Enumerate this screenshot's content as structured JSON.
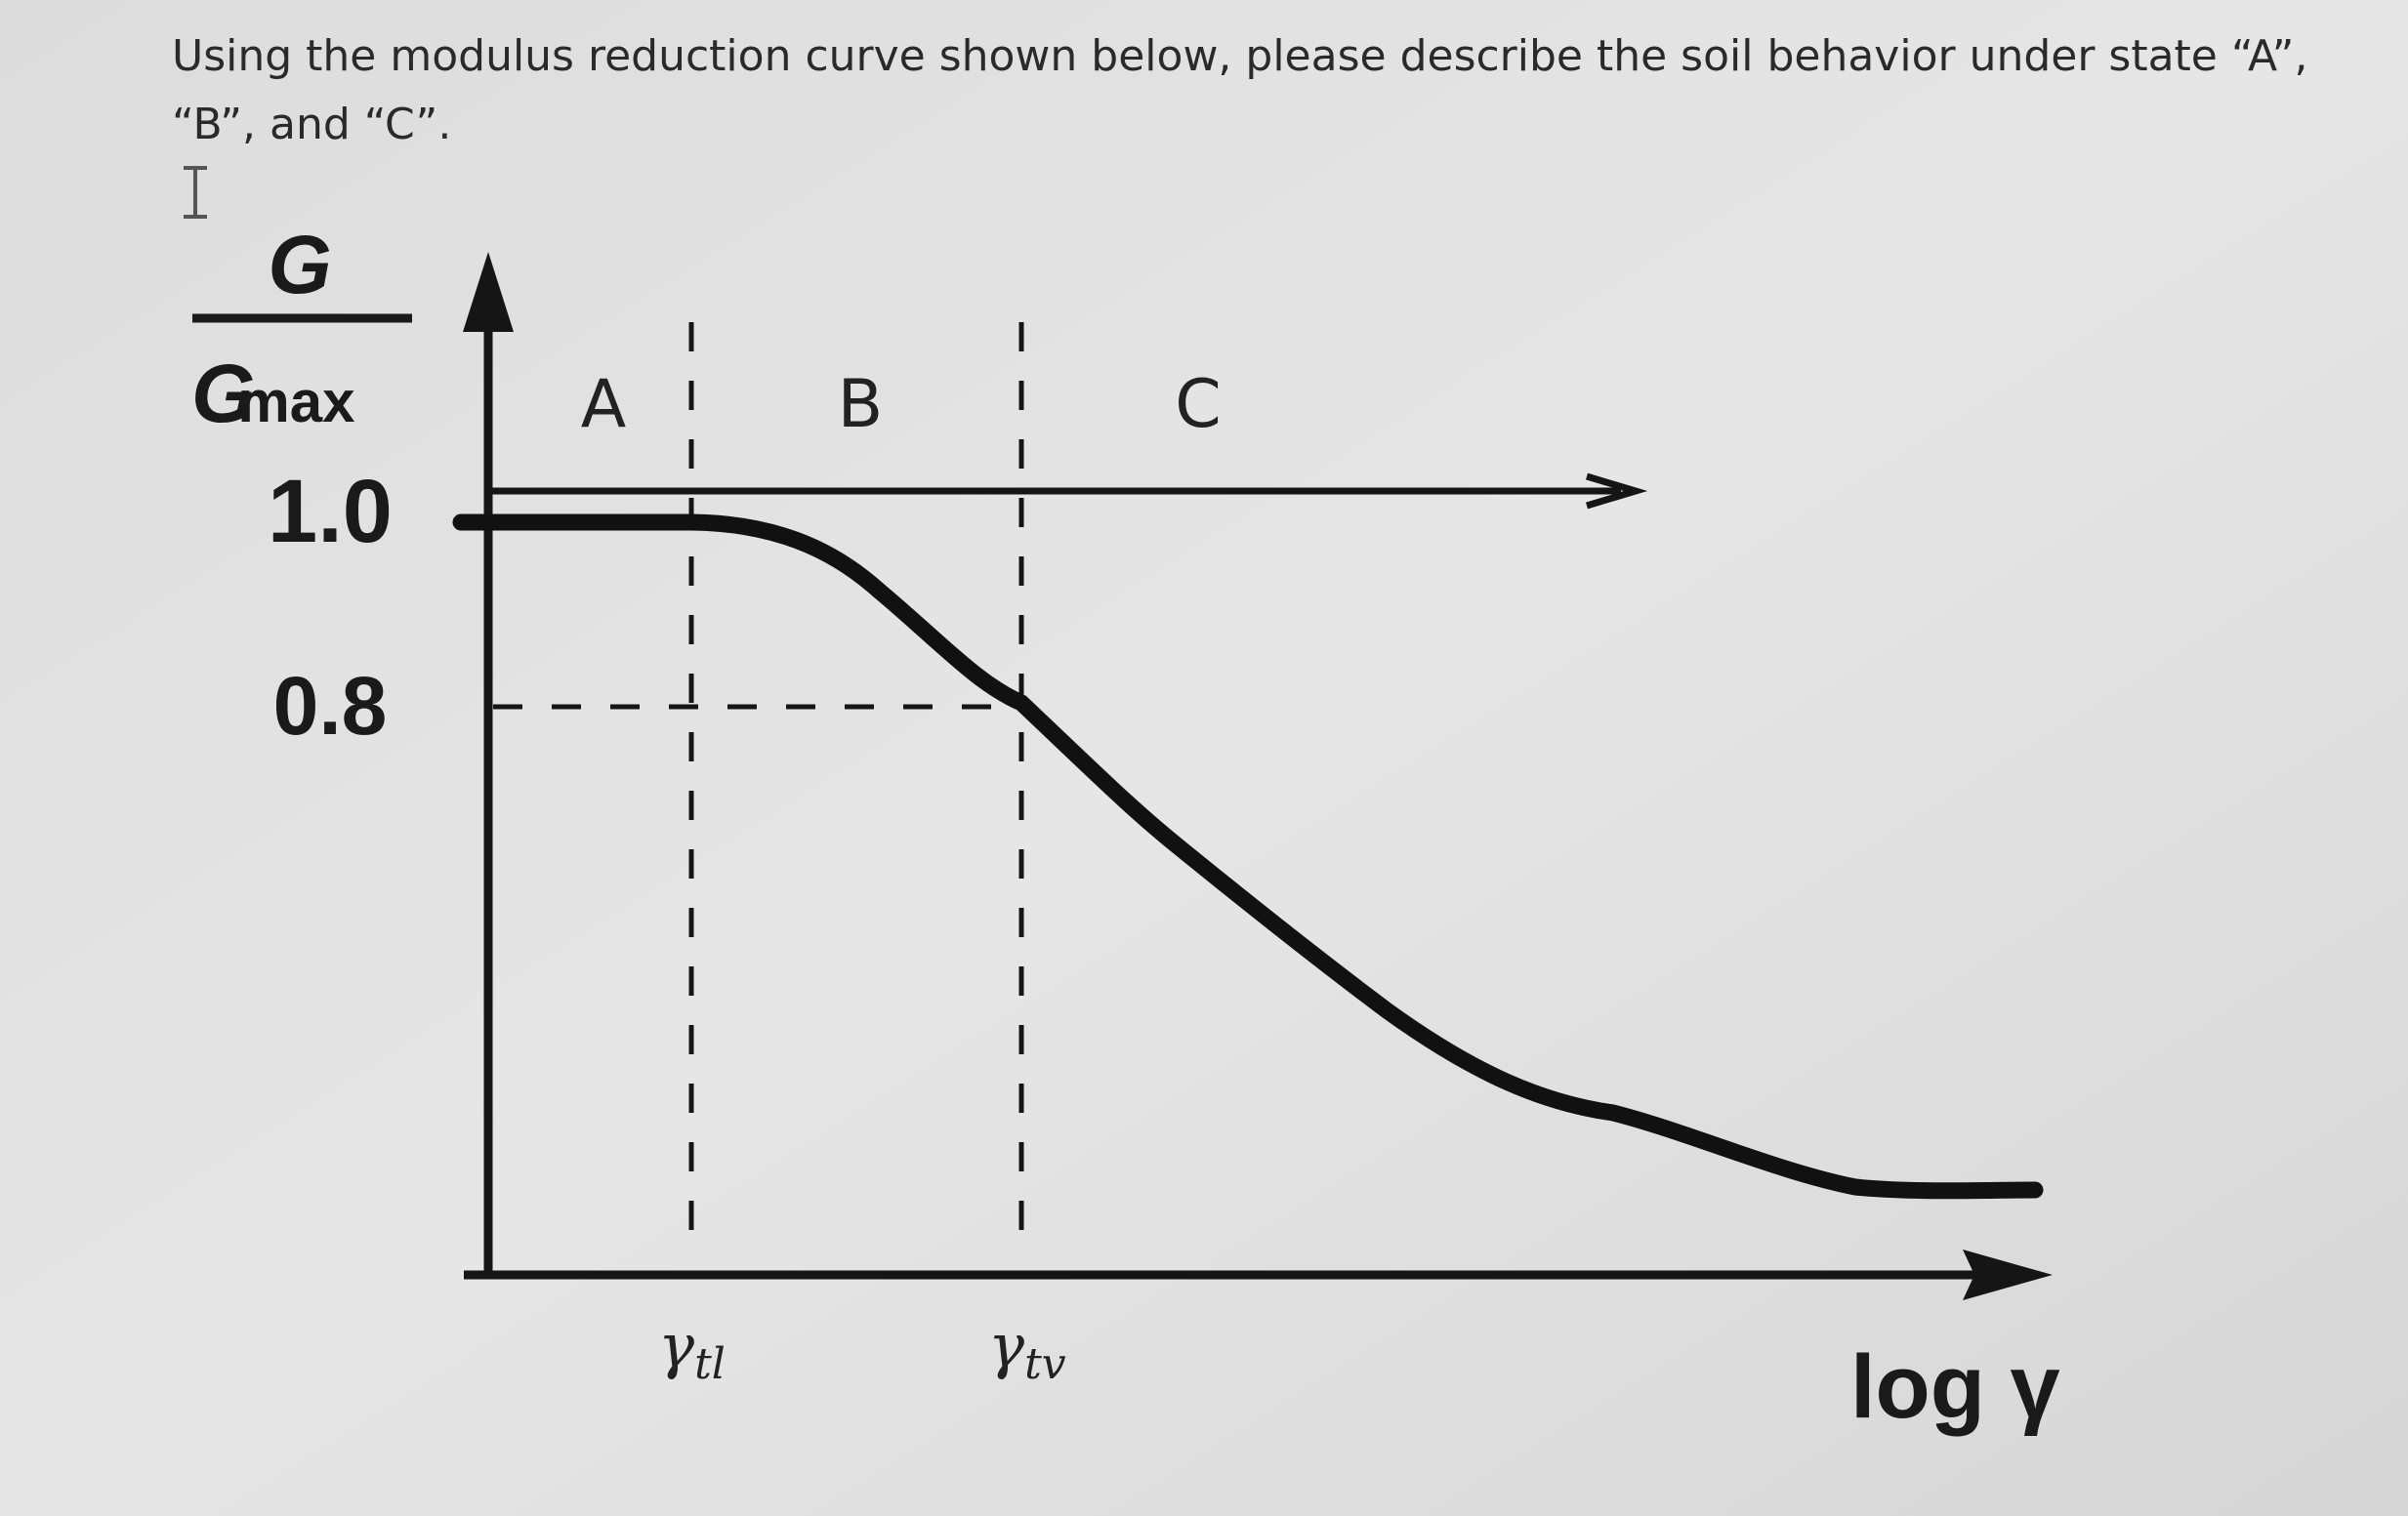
{
  "question": {
    "line1": "Using the modulus reduction curve shown below, please describe the soil behavior under state “A”,",
    "line2": "“B”, and “C”."
  },
  "figure": {
    "y_label": {
      "numerator": "G",
      "denominator": "G",
      "denominator_subscript": "max"
    },
    "y_ticks": [
      "1.0",
      "0.8"
    ],
    "regions": [
      "A",
      "B",
      "C"
    ],
    "thresholds": [
      {
        "symbol": "γ",
        "subscript": "tl"
      },
      {
        "symbol": "γ",
        "subscript": "tv"
      }
    ],
    "x_label": "log γ"
  }
}
